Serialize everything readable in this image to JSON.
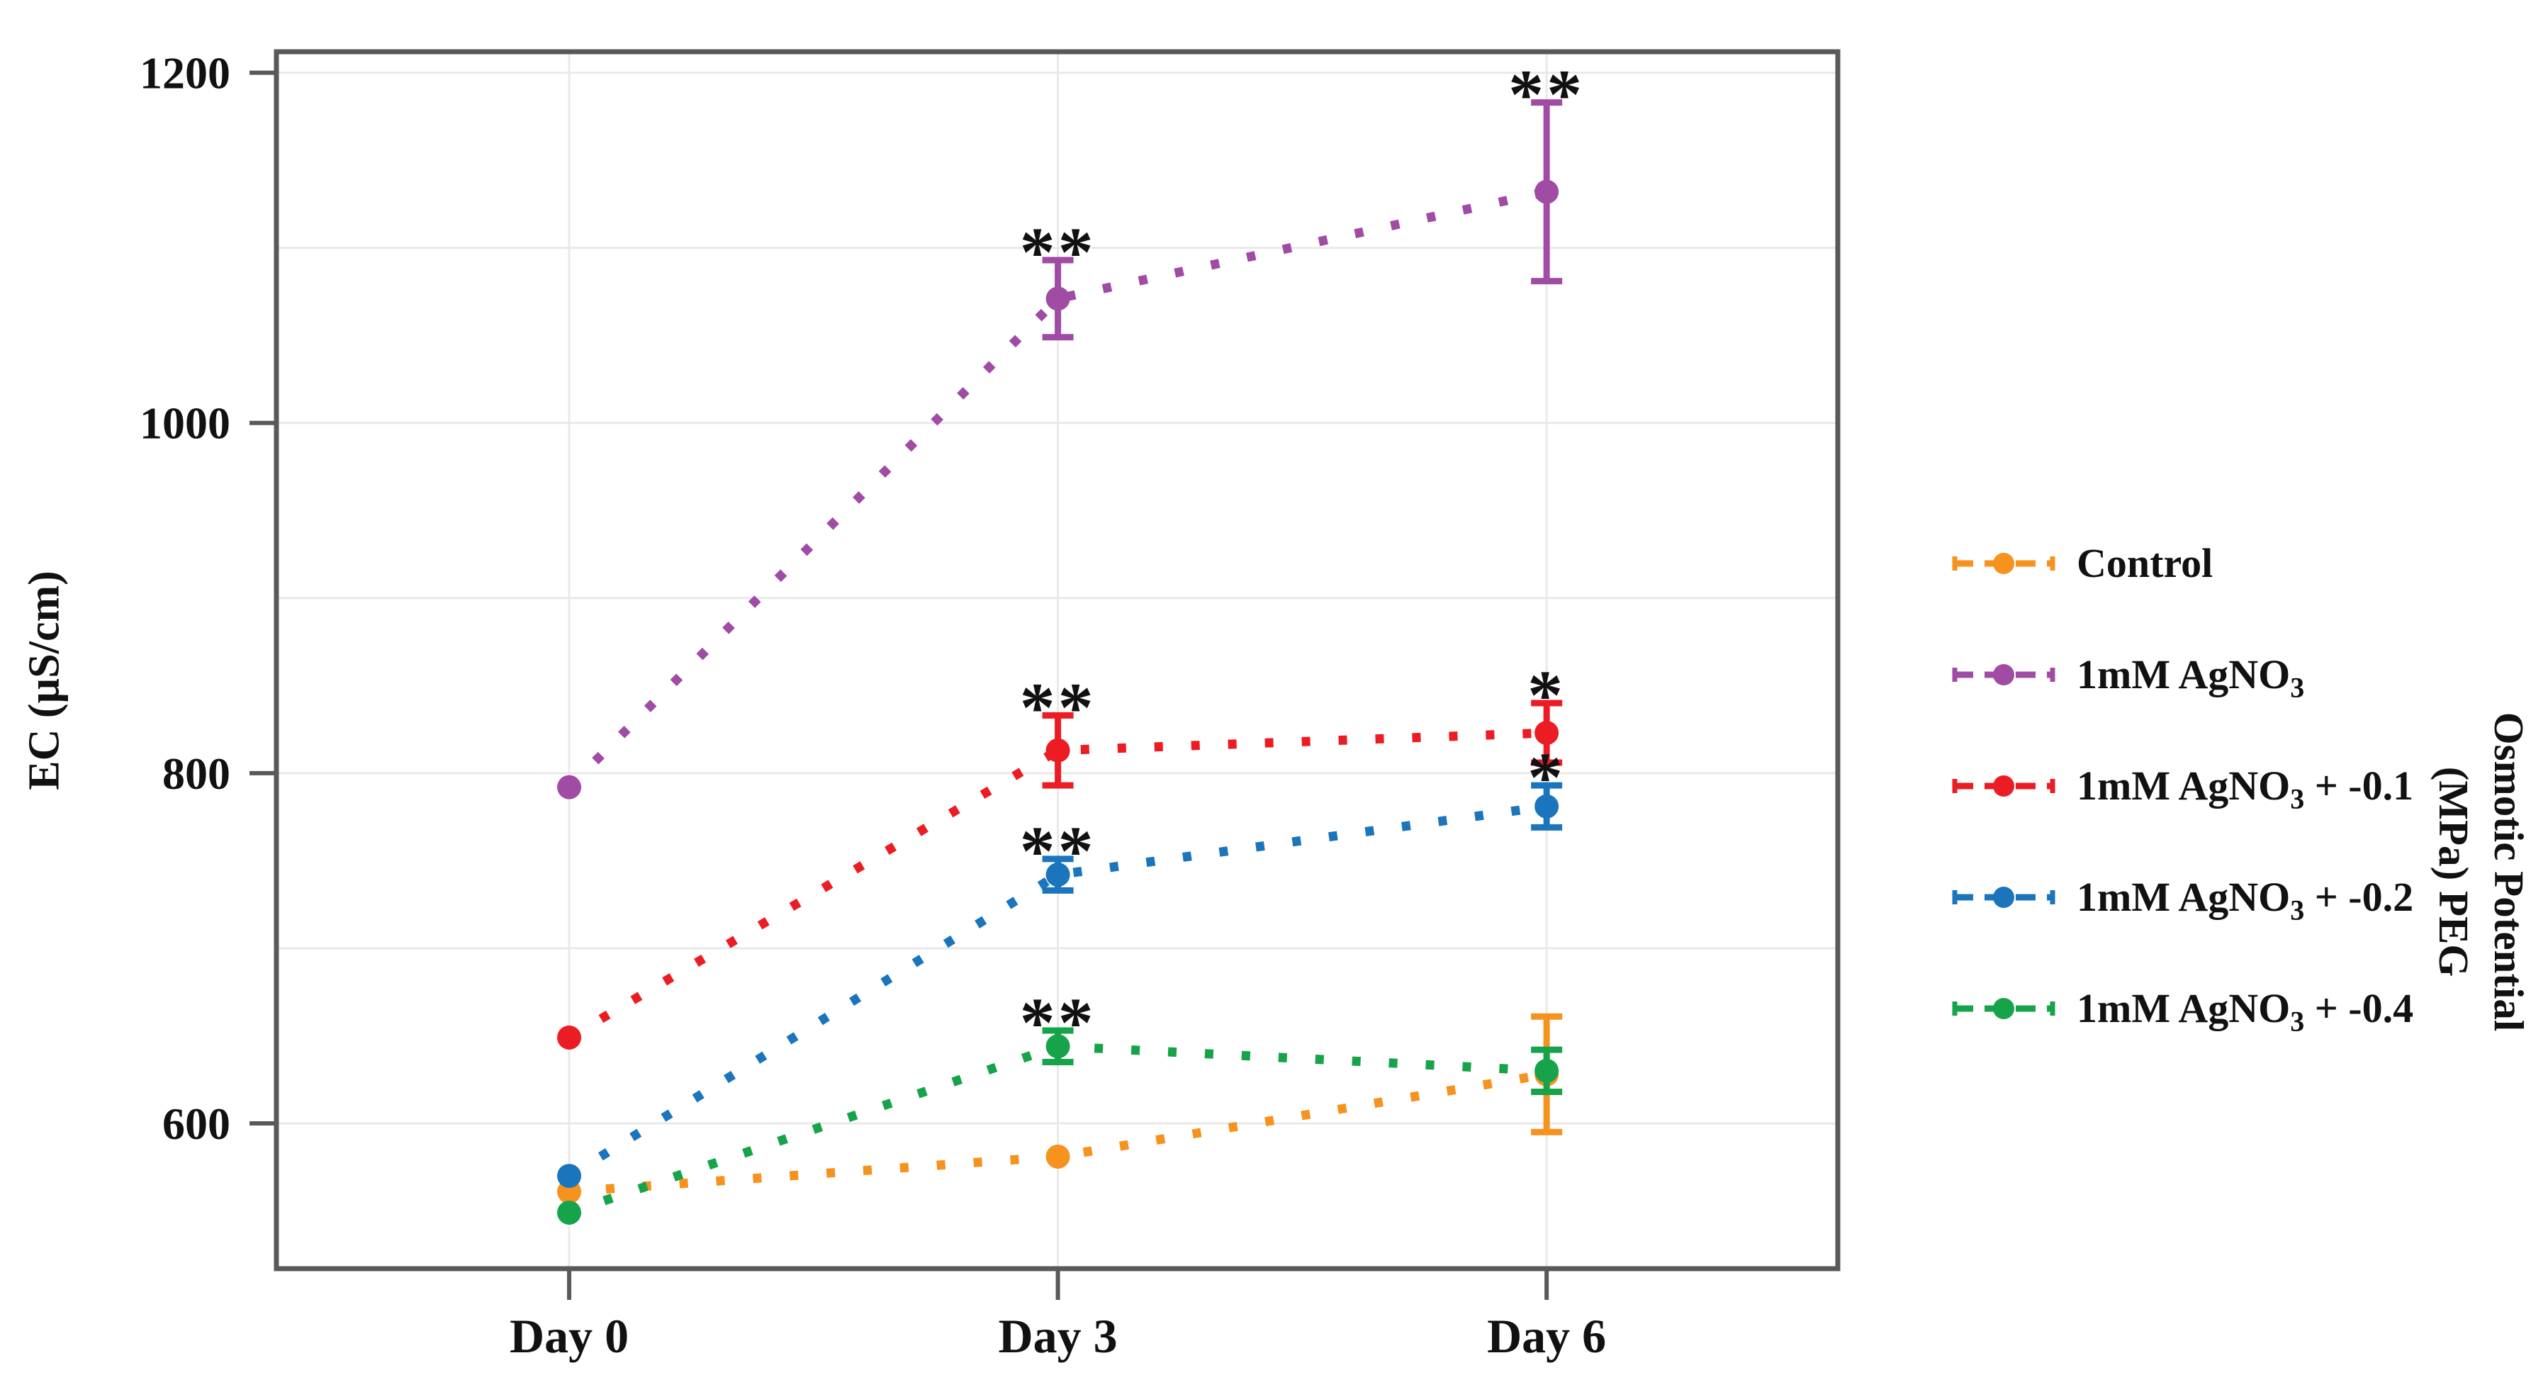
{
  "chart_data": {
    "type": "line",
    "title": "",
    "xlabel": "",
    "ylabel": "EC (µS/cm)",
    "ylabel_right_lines": [
      "Osmotic Potential",
      "(MPa) PEG"
    ],
    "categories": [
      "Day 0",
      "Day 3",
      "Day 6"
    ],
    "y_ticks": [
      600,
      800,
      1000,
      1200
    ],
    "y_gridlines": [
      600,
      700,
      800,
      900,
      1000,
      1100,
      1200
    ],
    "ylim": [
      517,
      1212
    ],
    "grid": true,
    "line_style": "dotted",
    "legend_position": "right-outside",
    "axis_color": "#595959",
    "grid_color": "#e9e9e9",
    "sig_color": "#111111",
    "series": [
      {
        "name_pre": "Control",
        "name_sub": "",
        "name_post": "",
        "color": "#F6921E",
        "values": [
          561,
          581,
          628
        ],
        "errors": [
          null,
          null,
          33
        ],
        "sig": [
          null,
          null,
          null
        ]
      },
      {
        "name_pre": "1mM AgNO",
        "name_sub": "3",
        "name_post": "",
        "color": "#A04CA4",
        "values": [
          792,
          1071,
          1132
        ],
        "errors": [
          null,
          22,
          51
        ],
        "sig": [
          null,
          "**",
          "**"
        ]
      },
      {
        "name_pre": "1mM AgNO",
        "name_sub": "3",
        "name_post": " + -0.1",
        "color": "#EC1C24",
        "values": [
          649,
          813,
          823
        ],
        "errors": [
          null,
          20,
          17
        ],
        "sig": [
          null,
          "**",
          "*"
        ]
      },
      {
        "name_pre": "1mM AgNO",
        "name_sub": "3",
        "name_post": " + -0.2",
        "color": "#1B75BC",
        "values": [
          570,
          742,
          781
        ],
        "errors": [
          null,
          9,
          12
        ],
        "sig": [
          null,
          "**",
          "*"
        ]
      },
      {
        "name_pre": "1mM AgNO",
        "name_sub": "3",
        "name_post": " + -0.4",
        "color": "#17A349",
        "values": [
          549,
          644,
          630
        ],
        "errors": [
          null,
          9,
          12
        ],
        "sig": [
          null,
          "**",
          null
        ]
      }
    ]
  }
}
